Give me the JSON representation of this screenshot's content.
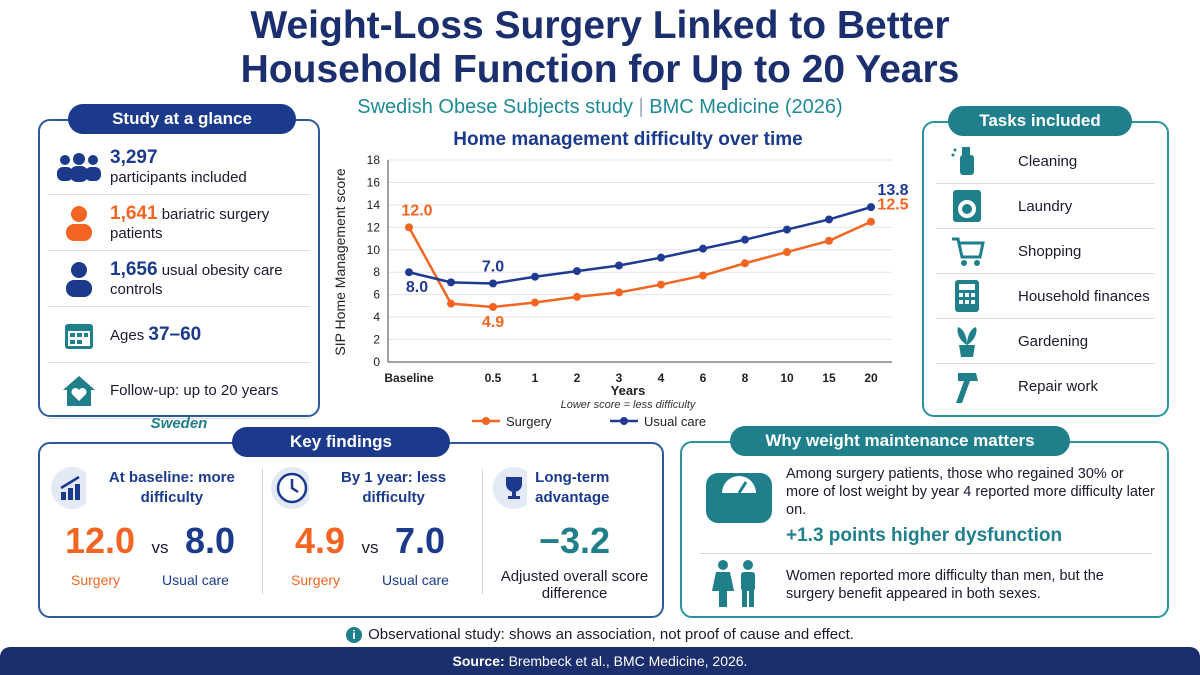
{
  "header": {
    "title_lines": [
      "Weight-Loss Surgery Linked to Better",
      "Household Function for Up to 20 Years"
    ],
    "subtitle_parts": [
      "Swedish Obese Subjects study",
      "BMC Medicine (2026)"
    ]
  },
  "study": {
    "heading": "Study at a glance",
    "items": [
      {
        "value": "3,297",
        "text": "participants included"
      },
      {
        "value": "1,641",
        "text": "bariatric surgery patients"
      },
      {
        "value": "1,656",
        "text": "usual obesity care controls"
      },
      {
        "text": "Ages",
        "value": "37–60"
      },
      {
        "text": "Follow-up: up to 20 years"
      }
    ],
    "country": "Sweden"
  },
  "tasks": {
    "heading": "Tasks included",
    "items": [
      "Cleaning",
      "Laundry",
      "Shopping",
      "Household finances",
      "Gardening",
      "Repair work"
    ]
  },
  "chart_data": {
    "type": "line",
    "title": "Home management difficulty over time",
    "y_label": "SIP Home Management score",
    "x_label": "Years",
    "note": "Lower score = less difficulty",
    "categories": [
      "Baseline",
      null,
      "0.5",
      "1",
      "2",
      "3",
      "4",
      "6",
      "8",
      "10",
      "15",
      "20"
    ],
    "ylim": [
      0,
      18
    ],
    "yticks": [
      0,
      2,
      4,
      6,
      8,
      10,
      12,
      14,
      16,
      18
    ],
    "grid": true,
    "legend": "bottom",
    "series": [
      {
        "name": "Surgery",
        "color": "#f26522",
        "values": [
          12.0,
          5.2,
          4.9,
          5.3,
          5.8,
          6.2,
          6.9,
          7.7,
          8.8,
          9.8,
          10.8,
          12.5
        ],
        "value_labels": [
          "12.0",
          null,
          "4.9",
          null,
          null,
          null,
          null,
          null,
          null,
          null,
          null,
          "12.5"
        ]
      },
      {
        "name": "Usual care",
        "color": "#1f3a93",
        "values": [
          8.0,
          7.1,
          7.0,
          7.6,
          8.1,
          8.6,
          9.3,
          10.1,
          10.9,
          11.8,
          12.7,
          13.8
        ],
        "value_labels": [
          "8.0",
          null,
          "7.0",
          null,
          null,
          null,
          null,
          null,
          null,
          null,
          null,
          "13.8"
        ]
      }
    ]
  },
  "findings": {
    "heading": "Key findings",
    "columns": [
      {
        "title": "At baseline: more difficulty",
        "left": "12.0",
        "vs": "vs",
        "right": "8.0",
        "left_label": "Surgery",
        "right_label": "Usual care"
      },
      {
        "title": "By 1 year: less difficulty",
        "left": "4.9",
        "vs": "vs",
        "right": "7.0",
        "left_label": "Surgery",
        "right_label": "Usual care"
      },
      {
        "title": "Long-term advantage",
        "value": "−3.2",
        "caption": "Adjusted overall score difference"
      }
    ]
  },
  "maintenance": {
    "heading": "Why weight maintenance matters",
    "text1": "Among surgery patients, those who regained 30% or more of lost weight by year 4 reported more difficulty later on.",
    "highlight": "+1.3 points higher dysfunction",
    "text2": "Women reported more difficulty than men, but the surgery benefit appeared in both sexes."
  },
  "footnote": "Observational study: shows an association, not proof of cause and effect.",
  "source": {
    "label": "Source:",
    "text": "Brembeck et al., BMC Medicine, 2026."
  }
}
